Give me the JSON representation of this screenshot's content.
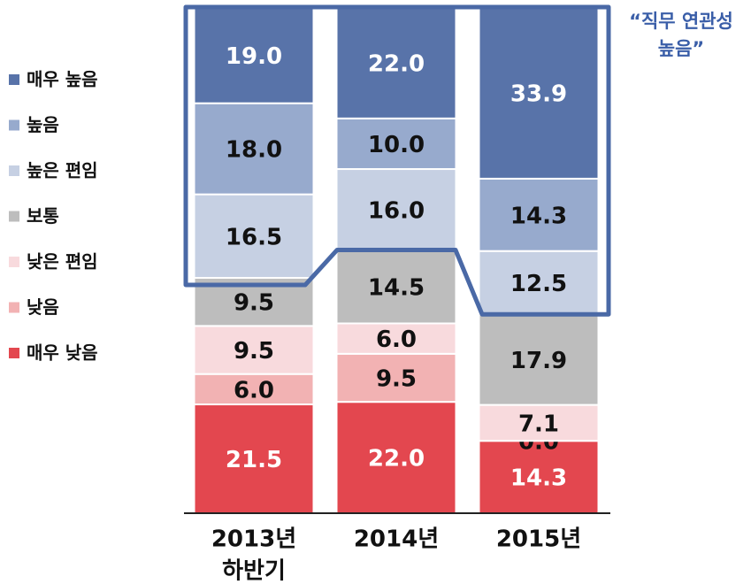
{
  "chart_data": {
    "type": "stacked_bar",
    "categories": [
      "2013년 하반기",
      "2014년",
      "2015년"
    ],
    "annotation": [
      "“직무 연관성",
      "높음”"
    ],
    "ylim": [
      0,
      100
    ],
    "series": [
      {
        "name": "매우 낮음",
        "color": "#e3474f",
        "values": [
          21.5,
          22.0,
          14.3
        ],
        "value_labels": [
          "21.5",
          "22.0",
          "14.3"
        ]
      },
      {
        "name": "낮음",
        "color": "#f2b2b3",
        "values": [
          6.0,
          9.5,
          0.0
        ],
        "value_labels": [
          "6.0",
          "9.5",
          "0.0"
        ]
      },
      {
        "name": "낮은 편임",
        "color": "#f8dadd",
        "values": [
          9.5,
          6.0,
          7.1
        ],
        "value_labels": [
          "9.5",
          "6.0",
          "7.1"
        ]
      },
      {
        "name": "보통",
        "color": "#bdbdbd",
        "values": [
          9.5,
          14.5,
          17.9
        ],
        "value_labels": [
          "9.5",
          "14.5",
          "17.9"
        ]
      },
      {
        "name": "높은 편임",
        "color": "#c6d0e3",
        "values": [
          16.5,
          16.0,
          12.5
        ],
        "value_labels": [
          "16.5",
          "16.0",
          "12.5"
        ]
      },
      {
        "name": "높음",
        "color": "#97aacd",
        "values": [
          18.0,
          10.0,
          14.3
        ],
        "value_labels": [
          "18.0",
          "10.0",
          "14.3"
        ]
      },
      {
        "name": "매우 높음",
        "color": "#5873a9",
        "values": [
          19.0,
          22.0,
          33.9
        ],
        "value_labels": [
          "19.0",
          "22.0",
          "33.9"
        ]
      }
    ]
  }
}
